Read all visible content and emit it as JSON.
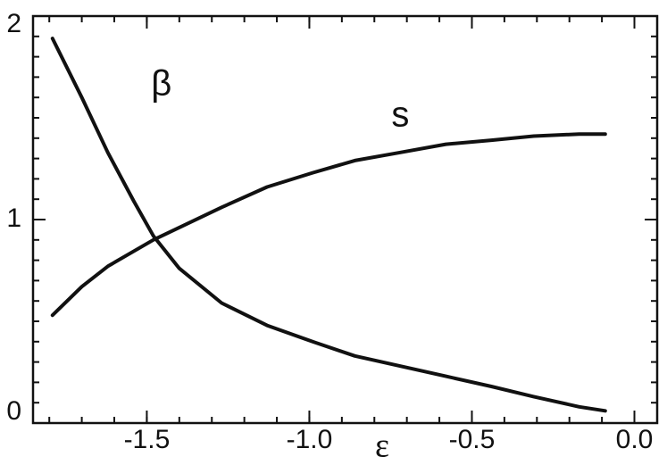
{
  "chart_data": {
    "type": "line",
    "xlabel": "ε",
    "xlim": [
      -1.85,
      0.07
    ],
    "ylim": [
      0,
      2
    ],
    "xticks": [
      -1.5,
      {
        "value": -1.0,
        "label": "-1.0"
      },
      -0.5,
      {
        "value": 0.0,
        "label": "0.0"
      }
    ],
    "yticks": [
      0,
      1,
      2
    ],
    "color": "#111111",
    "series": [
      {
        "name": "β",
        "color": "#111111",
        "x": [
          -1.79,
          -1.7,
          -1.62,
          -1.54,
          -1.48,
          -1.4,
          -1.27,
          -1.13,
          -0.99,
          -0.86,
          -0.72,
          -0.58,
          -0.44,
          -0.31,
          -0.17,
          -0.09
        ],
        "values": [
          1.89,
          1.6,
          1.33,
          1.09,
          0.92,
          0.76,
          0.59,
          0.48,
          0.4,
          0.33,
          0.28,
          0.23,
          0.18,
          0.13,
          0.08,
          0.06
        ]
      },
      {
        "name": "s",
        "color": "#111111",
        "x": [
          -1.79,
          -1.7,
          -1.62,
          -1.48,
          -1.27,
          -1.13,
          -0.99,
          -0.86,
          -0.72,
          -0.58,
          -0.44,
          -0.31,
          -0.17,
          -0.09
        ],
        "values": [
          0.53,
          0.67,
          0.77,
          0.9,
          1.06,
          1.16,
          1.23,
          1.29,
          1.33,
          1.37,
          1.39,
          1.41,
          1.42,
          1.42
        ]
      }
    ]
  }
}
